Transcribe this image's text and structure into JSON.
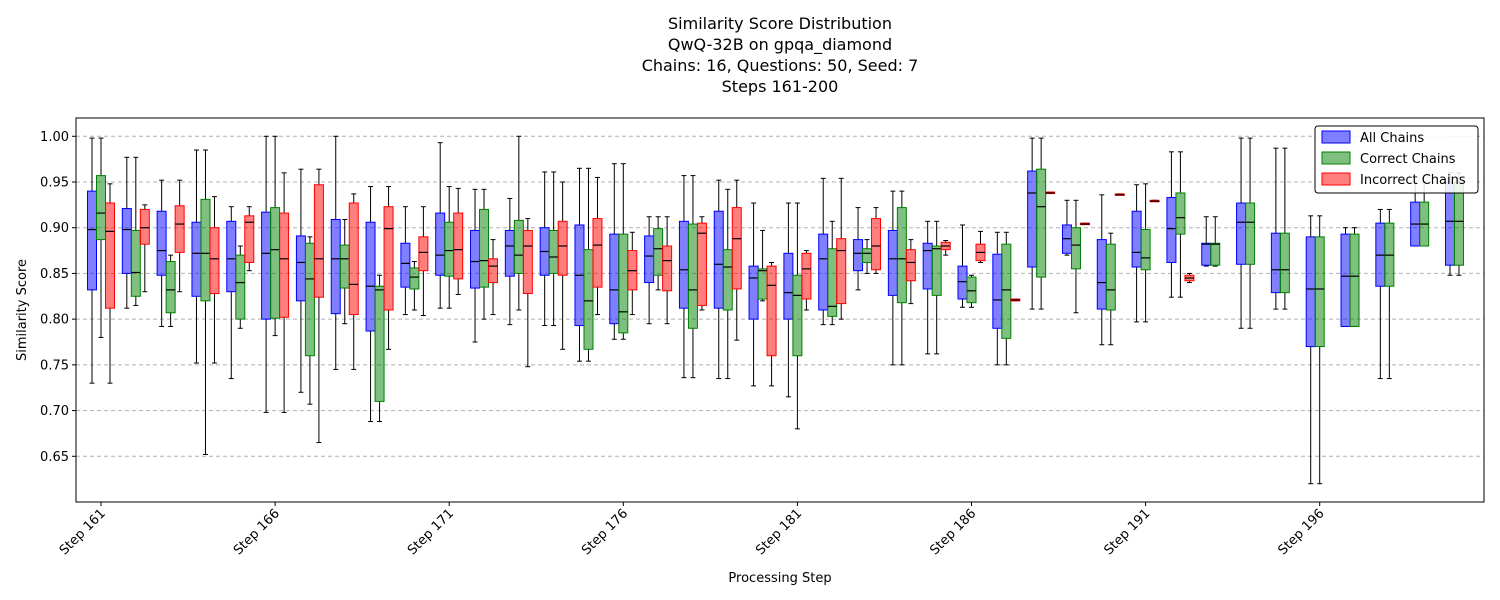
{
  "chart_data": {
    "type": "box",
    "title_lines": [
      "Similarity Score Distribution",
      "QwQ-32B on gpqa_diamond",
      "Chains: 16, Questions: 50, Seed: 7",
      "Steps 161-200"
    ],
    "xlabel": "Processing Step",
    "ylabel": "Similarity Score",
    "ylim": [
      0.6,
      1.02
    ],
    "yticks": [
      0.65,
      0.7,
      0.75,
      0.8,
      0.85,
      0.9,
      0.95,
      1.0
    ],
    "ytick_labels": [
      "0.65",
      "0.70",
      "0.75",
      "0.80",
      "0.85",
      "0.90",
      "0.95",
      "1.00"
    ],
    "grid": "y-dashed",
    "legend_position": "top-right",
    "xtick_labels": [
      {
        "step": 161,
        "label": "Step 161"
      },
      {
        "step": 166,
        "label": "Step 166"
      },
      {
        "step": 171,
        "label": "Step 171"
      },
      {
        "step": 176,
        "label": "Step 176"
      },
      {
        "step": 181,
        "label": "Step 181"
      },
      {
        "step": 186,
        "label": "Step 186"
      },
      {
        "step": 191,
        "label": "Step 191"
      },
      {
        "step": 196,
        "label": "Step 196"
      }
    ],
    "series": [
      {
        "name": "All Chains",
        "color": "#0000ff"
      },
      {
        "name": "Correct Chains",
        "color": "#008000"
      },
      {
        "name": "Incorrect Chains",
        "color": "#ff0000"
      }
    ],
    "steps": [
      {
        "step": 161,
        "boxes": [
          [
            0.73,
            0.832,
            0.898,
            0.94,
            0.998
          ],
          [
            0.78,
            0.887,
            0.916,
            0.957,
            0.998
          ],
          [
            0.73,
            0.812,
            0.896,
            0.927,
            0.948
          ]
        ]
      },
      {
        "step": 162,
        "boxes": [
          [
            0.812,
            0.85,
            0.898,
            0.921,
            0.977
          ],
          [
            0.815,
            0.825,
            0.851,
            0.897,
            0.977
          ],
          [
            0.83,
            0.882,
            0.9,
            0.92,
            0.925
          ]
        ]
      },
      {
        "step": 163,
        "boxes": [
          [
            0.792,
            0.848,
            0.875,
            0.918,
            0.952
          ],
          [
            0.792,
            0.807,
            0.832,
            0.863,
            0.87
          ],
          [
            0.83,
            0.873,
            0.904,
            0.924,
            0.952
          ]
        ]
      },
      {
        "step": 164,
        "boxes": [
          [
            0.752,
            0.825,
            0.872,
            0.906,
            0.985
          ],
          [
            0.652,
            0.82,
            0.872,
            0.931,
            0.985
          ],
          [
            0.752,
            0.828,
            0.866,
            0.9,
            0.934
          ]
        ]
      },
      {
        "step": 165,
        "boxes": [
          [
            0.735,
            0.83,
            0.866,
            0.907,
            0.923
          ],
          [
            0.79,
            0.8,
            0.84,
            0.87,
            0.88
          ],
          [
            0.853,
            0.862,
            0.906,
            0.913,
            0.923
          ]
        ]
      },
      {
        "step": 166,
        "boxes": [
          [
            0.698,
            0.8,
            0.872,
            0.917,
            1.0
          ],
          [
            0.782,
            0.801,
            0.876,
            0.922,
            1.0
          ],
          [
            0.698,
            0.802,
            0.866,
            0.916,
            0.96
          ]
        ]
      },
      {
        "step": 167,
        "boxes": [
          [
            0.72,
            0.82,
            0.862,
            0.891,
            0.964
          ],
          [
            0.707,
            0.76,
            0.844,
            0.883,
            0.89
          ],
          [
            0.665,
            0.824,
            0.866,
            0.947,
            0.964
          ]
        ]
      },
      {
        "step": 168,
        "boxes": [
          [
            0.745,
            0.806,
            0.866,
            0.909,
            1.0
          ],
          [
            0.795,
            0.834,
            0.866,
            0.881,
            0.909
          ],
          [
            0.745,
            0.805,
            0.838,
            0.927,
            0.937
          ]
        ]
      },
      {
        "step": 169,
        "boxes": [
          [
            0.688,
            0.787,
            0.836,
            0.906,
            0.945
          ],
          [
            0.688,
            0.71,
            0.832,
            0.836,
            0.848
          ],
          [
            0.767,
            0.81,
            0.899,
            0.923,
            0.945
          ]
        ]
      },
      {
        "step": 170,
        "boxes": [
          [
            0.805,
            0.835,
            0.861,
            0.883,
            0.923
          ],
          [
            0.81,
            0.833,
            0.846,
            0.856,
            0.863
          ],
          [
            0.804,
            0.853,
            0.873,
            0.89,
            0.923
          ]
        ]
      },
      {
        "step": 171,
        "boxes": [
          [
            0.812,
            0.848,
            0.87,
            0.916,
            0.993
          ],
          [
            0.812,
            0.847,
            0.875,
            0.906,
            0.945
          ],
          [
            0.827,
            0.844,
            0.876,
            0.916,
            0.943
          ]
        ]
      },
      {
        "step": 172,
        "boxes": [
          [
            0.775,
            0.834,
            0.863,
            0.897,
            0.942
          ],
          [
            0.8,
            0.835,
            0.864,
            0.92,
            0.942
          ],
          [
            0.805,
            0.84,
            0.858,
            0.866,
            0.887
          ]
        ]
      },
      {
        "step": 173,
        "boxes": [
          [
            0.794,
            0.847,
            0.88,
            0.897,
            0.932
          ],
          [
            0.81,
            0.85,
            0.87,
            0.908,
            1.0
          ],
          [
            0.748,
            0.828,
            0.88,
            0.897,
            0.91
          ]
        ]
      },
      {
        "step": 174,
        "boxes": [
          [
            0.793,
            0.848,
            0.874,
            0.9,
            0.961
          ],
          [
            0.793,
            0.85,
            0.868,
            0.897,
            0.961
          ],
          [
            0.767,
            0.848,
            0.88,
            0.907,
            0.95
          ]
        ]
      },
      {
        "step": 175,
        "boxes": [
          [
            0.754,
            0.793,
            0.848,
            0.903,
            0.965
          ],
          [
            0.754,
            0.767,
            0.82,
            0.876,
            0.965
          ],
          [
            0.805,
            0.835,
            0.881,
            0.91,
            0.955
          ]
        ]
      },
      {
        "step": 176,
        "boxes": [
          [
            0.778,
            0.795,
            0.832,
            0.893,
            0.97
          ],
          [
            0.778,
            0.785,
            0.808,
            0.893,
            0.97
          ],
          [
            0.805,
            0.832,
            0.853,
            0.875,
            0.895
          ]
        ]
      },
      {
        "step": 177,
        "boxes": [
          [
            0.795,
            0.84,
            0.869,
            0.891,
            0.912
          ],
          [
            0.832,
            0.848,
            0.877,
            0.899,
            0.912
          ],
          [
            0.795,
            0.831,
            0.864,
            0.88,
            0.912
          ]
        ]
      },
      {
        "step": 178,
        "boxes": [
          [
            0.736,
            0.812,
            0.854,
            0.907,
            0.957
          ],
          [
            0.736,
            0.79,
            0.832,
            0.904,
            0.957
          ],
          [
            0.81,
            0.815,
            0.894,
            0.905,
            0.912
          ]
        ]
      },
      {
        "step": 179,
        "boxes": [
          [
            0.735,
            0.812,
            0.86,
            0.918,
            0.952
          ],
          [
            0.735,
            0.81,
            0.857,
            0.876,
            0.942
          ],
          [
            0.777,
            0.833,
            0.888,
            0.922,
            0.952
          ]
        ]
      },
      {
        "step": 180,
        "boxes": [
          [
            0.727,
            0.8,
            0.845,
            0.858,
            0.927
          ],
          [
            0.82,
            0.822,
            0.853,
            0.855,
            0.897
          ],
          [
            0.727,
            0.76,
            0.837,
            0.858,
            0.862
          ]
        ]
      },
      {
        "step": 181,
        "boxes": [
          [
            0.715,
            0.8,
            0.829,
            0.872,
            0.927
          ],
          [
            0.68,
            0.76,
            0.826,
            0.848,
            0.927
          ],
          [
            0.81,
            0.822,
            0.855,
            0.872,
            0.875
          ]
        ]
      },
      {
        "step": 182,
        "boxes": [
          [
            0.794,
            0.81,
            0.866,
            0.893,
            0.954
          ],
          [
            0.794,
            0.803,
            0.814,
            0.877,
            0.907
          ],
          [
            0.8,
            0.817,
            0.875,
            0.888,
            0.954
          ]
        ]
      },
      {
        "step": 183,
        "boxes": [
          [
            0.832,
            0.853,
            0.872,
            0.887,
            0.922
          ],
          [
            0.85,
            0.862,
            0.872,
            0.877,
            0.887
          ],
          [
            0.85,
            0.854,
            0.88,
            0.91,
            0.922
          ]
        ]
      },
      {
        "step": 184,
        "boxes": [
          [
            0.75,
            0.826,
            0.866,
            0.897,
            0.94
          ],
          [
            0.75,
            0.818,
            0.866,
            0.922,
            0.94
          ],
          [
            0.817,
            0.842,
            0.862,
            0.876,
            0.887
          ]
        ]
      },
      {
        "step": 185,
        "boxes": [
          [
            0.762,
            0.833,
            0.875,
            0.883,
            0.907
          ],
          [
            0.762,
            0.826,
            0.877,
            0.88,
            0.907
          ],
          [
            0.87,
            0.876,
            0.88,
            0.884,
            0.886
          ]
        ]
      },
      {
        "step": 186,
        "boxes": [
          [
            0.813,
            0.822,
            0.841,
            0.858,
            0.903
          ],
          [
            0.813,
            0.818,
            0.831,
            0.846,
            0.848
          ],
          [
            0.862,
            0.864,
            0.873,
            0.882,
            0.896
          ]
        ]
      },
      {
        "step": 187,
        "boxes": [
          [
            0.75,
            0.79,
            0.821,
            0.871,
            0.895
          ],
          [
            0.75,
            0.779,
            0.832,
            0.882,
            0.895
          ],
          [
            0.82,
            0.82,
            0.821,
            0.822,
            0.822
          ]
        ]
      },
      {
        "step": 188,
        "boxes": [
          [
            0.811,
            0.857,
            0.938,
            0.962,
            0.998
          ],
          [
            0.811,
            0.846,
            0.923,
            0.964,
            0.998
          ],
          [
            0.938,
            0.938,
            0.938,
            0.939,
            0.939
          ]
        ]
      },
      {
        "step": 189,
        "boxes": [
          [
            0.87,
            0.872,
            0.888,
            0.903,
            0.93
          ],
          [
            0.807,
            0.855,
            0.881,
            0.9,
            0.93
          ],
          [
            0.904,
            0.904,
            0.904,
            0.905,
            0.905
          ]
        ]
      },
      {
        "step": 190,
        "boxes": [
          [
            0.772,
            0.811,
            0.84,
            0.887,
            0.936
          ],
          [
            0.772,
            0.81,
            0.832,
            0.882,
            0.894
          ],
          [
            0.936,
            0.936,
            0.936,
            0.937,
            0.937
          ]
        ]
      },
      {
        "step": 191,
        "boxes": [
          [
            0.797,
            0.857,
            0.873,
            0.918,
            0.947
          ],
          [
            0.797,
            0.854,
            0.867,
            0.898,
            0.948
          ],
          [
            0.929,
            0.929,
            0.929,
            0.93,
            0.93
          ]
        ]
      },
      {
        "step": 192,
        "boxes": [
          [
            0.824,
            0.862,
            0.899,
            0.933,
            0.983
          ],
          [
            0.824,
            0.893,
            0.911,
            0.938,
            0.983
          ],
          [
            0.84,
            0.842,
            0.845,
            0.848,
            0.85
          ]
        ]
      },
      {
        "step": 193,
        "boxes": [
          [
            0.858,
            0.859,
            0.882,
            0.883,
            0.912
          ],
          [
            0.858,
            0.859,
            0.882,
            0.883,
            0.912
          ],
          null
        ]
      },
      {
        "step": 194,
        "boxes": [
          [
            0.79,
            0.86,
            0.906,
            0.927,
            0.998
          ],
          [
            0.79,
            0.86,
            0.906,
            0.927,
            0.998
          ],
          null
        ]
      },
      {
        "step": 195,
        "boxes": [
          [
            0.811,
            0.829,
            0.854,
            0.894,
            0.987
          ],
          [
            0.811,
            0.829,
            0.854,
            0.894,
            0.987
          ],
          null
        ]
      },
      {
        "step": 196,
        "boxes": [
          [
            0.62,
            0.77,
            0.833,
            0.89,
            0.913
          ],
          [
            0.62,
            0.77,
            0.833,
            0.89,
            0.913
          ],
          null
        ]
      },
      {
        "step": 197,
        "boxes": [
          [
            0.792,
            0.792,
            0.847,
            0.893,
            0.9
          ],
          [
            0.792,
            0.792,
            0.847,
            0.893,
            0.9
          ],
          null
        ]
      },
      {
        "step": 198,
        "boxes": [
          [
            0.735,
            0.836,
            0.87,
            0.905,
            0.92
          ],
          [
            0.735,
            0.836,
            0.87,
            0.905,
            0.92
          ],
          null
        ]
      },
      {
        "step": 199,
        "boxes": [
          [
            0.88,
            0.88,
            0.904,
            0.928,
            0.95
          ],
          [
            0.88,
            0.88,
            0.904,
            0.928,
            0.95
          ],
          null
        ]
      },
      {
        "step": 200,
        "boxes": [
          [
            0.848,
            0.859,
            0.907,
            0.95,
            0.96
          ],
          [
            0.848,
            0.859,
            0.907,
            0.95,
            0.96
          ],
          null
        ]
      }
    ]
  }
}
